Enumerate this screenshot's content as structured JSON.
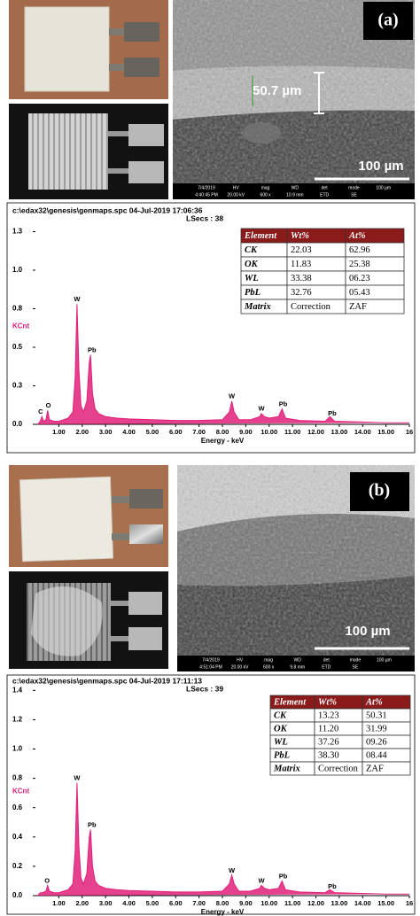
{
  "panels": [
    {
      "label": "(a)",
      "thickness": "50.7 µm",
      "scale_bar": "100 µm",
      "sem_info": [
        [
          "7/4/2019",
          "HV",
          "mag",
          "WD",
          "det",
          "mode",
          "100 µm"
        ],
        [
          "4:40:45 PM",
          "20.00 kV",
          "600 x",
          "10.9 mm",
          "ETD",
          "SE"
        ]
      ]
    },
    {
      "label": "(b)",
      "scale_bar": "100 µm",
      "sem_info": [
        [
          "7/4/2019",
          "HV",
          "mag",
          "WD",
          "det",
          "mode",
          "100 µm"
        ],
        [
          "4:51:04 PM",
          "20.00 kV",
          "600 x",
          "9.8 mm",
          "ETD",
          "SE"
        ]
      ]
    }
  ],
  "chart_data": [
    {
      "type": "line",
      "header": "c:\\edax32\\genesis\\genmaps.spc  04-Jul-2019 17:06:36",
      "lsecs": "LSecs :  38",
      "ylabel": "KCnt",
      "xlabel": "Energy - keV",
      "color": "#e0207a",
      "xlim": [
        0,
        16
      ],
      "ylim": [
        0,
        1.27
      ],
      "xticks": [
        {
          "value": 1,
          "label": "1.00"
        },
        {
          "value": 2,
          "label": "2.00"
        },
        {
          "value": 3,
          "label": "3.00"
        },
        {
          "value": 4,
          "label": "4.00"
        },
        {
          "value": 5,
          "label": "5.00"
        },
        {
          "value": 6,
          "label": "6.00"
        },
        {
          "value": 7,
          "label": "7.00"
        },
        {
          "value": 8,
          "label": "8.00"
        },
        {
          "value": 9,
          "label": "9.00"
        },
        {
          "value": 10,
          "label": "10.00"
        },
        {
          "value": 11,
          "label": "11.00"
        },
        {
          "value": 12,
          "label": "12.00"
        },
        {
          "value": 13,
          "label": "13.00"
        },
        {
          "value": 14,
          "label": "14.00"
        },
        {
          "value": 15,
          "label": "15.00"
        },
        16
      ],
      "yticks": [
        {
          "value": 0,
          "label": "0.0"
        },
        {
          "value": 0.25,
          "label": "0.3"
        },
        {
          "value": 0.5,
          "label": "0.5"
        },
        {
          "value": 0.75,
          "label": "0.8"
        },
        {
          "value": 1,
          "label": "1.0"
        },
        {
          "value": 1.25,
          "label": "1.3"
        }
      ],
      "x": [
        0.1,
        0.2,
        0.28,
        0.35,
        0.45,
        0.52,
        0.6,
        0.8,
        1.0,
        1.2,
        1.4,
        1.6,
        1.7,
        1.78,
        1.86,
        1.95,
        2.05,
        2.2,
        2.3,
        2.36,
        2.44,
        2.55,
        2.7,
        3.0,
        3.5,
        4.0,
        5.0,
        6.0,
        7.0,
        8.0,
        8.3,
        8.4,
        8.5,
        8.7,
        9.2,
        9.6,
        9.67,
        9.8,
        10.0,
        10.4,
        10.55,
        10.7,
        11.3,
        12.4,
        12.6,
        12.8,
        14.0,
        15.0,
        16.0
      ],
      "values": [
        0,
        0.02,
        0.05,
        0.02,
        0.03,
        0.09,
        0.03,
        0.02,
        0.02,
        0.03,
        0.04,
        0.08,
        0.3,
        0.78,
        0.35,
        0.12,
        0.08,
        0.15,
        0.4,
        0.45,
        0.2,
        0.1,
        0.07,
        0.05,
        0.04,
        0.035,
        0.03,
        0.025,
        0.025,
        0.03,
        0.08,
        0.15,
        0.08,
        0.03,
        0.03,
        0.05,
        0.07,
        0.05,
        0.04,
        0.05,
        0.1,
        0.04,
        0.025,
        0.02,
        0.05,
        0.02,
        0.015,
        0.01,
        0.01
      ],
      "annotations": [
        {
          "text": "C",
          "x": 0.22,
          "y": 0.08
        },
        {
          "text": "O",
          "x": 0.55,
          "y": 0.12
        },
        {
          "text": "W",
          "x": 1.78,
          "y": 0.81
        },
        {
          "text": "Pb",
          "x": 2.42,
          "y": 0.48
        },
        {
          "text": "W",
          "x": 8.4,
          "y": 0.18
        },
        {
          "text": "W",
          "x": 9.67,
          "y": 0.1
        },
        {
          "text": "Pb",
          "x": 10.6,
          "y": 0.13
        },
        {
          "text": "Pb",
          "x": 12.7,
          "y": 0.07
        }
      ],
      "table": {
        "header": [
          "Element",
          "Wt%",
          "At%"
        ],
        "rows": [
          [
            "CK",
            "22.03",
            "62.96"
          ],
          [
            "OK",
            "11.83",
            "25.38"
          ],
          [
            "WL",
            "33.38",
            "06.23"
          ],
          [
            "PbL",
            "32.76",
            "05.43"
          ],
          [
            "Matrix",
            "Correction",
            "ZAF"
          ]
        ]
      }
    },
    {
      "type": "line",
      "header": "c:\\edax32\\genesis\\genmaps.spc  04-Jul-2019 17:11:13",
      "lsecs": "LSecs :  39",
      "ylabel": "KCnt",
      "xlabel": "Energy - keV",
      "color": "#e0207a",
      "xlim": [
        0,
        16
      ],
      "ylim": [
        0,
        1.42
      ],
      "xticks": [
        {
          "value": 1,
          "label": "1.00"
        },
        {
          "value": 2,
          "label": "2.00"
        },
        {
          "value": 3,
          "label": "3.00"
        },
        {
          "value": 4,
          "label": "4.00"
        },
        {
          "value": 5,
          "label": "5.00"
        },
        {
          "value": 6,
          "label": "6.00"
        },
        {
          "value": 7,
          "label": "7.00"
        },
        {
          "value": 8,
          "label": "8.00"
        },
        {
          "value": 9,
          "label": "9.00"
        },
        {
          "value": 10,
          "label": "10.00"
        },
        {
          "value": 11,
          "label": "11.00"
        },
        {
          "value": 12,
          "label": "12.00"
        },
        {
          "value": 13,
          "label": "13.00"
        },
        {
          "value": 14,
          "label": "14.00"
        },
        {
          "value": 15,
          "label": "15.00"
        },
        16
      ],
      "yticks": [
        {
          "value": 0,
          "label": "0.0"
        },
        0.2,
        0.4,
        0.6,
        0.8,
        {
          "value": 1,
          "label": "1.0"
        },
        1.2,
        1.4
      ],
      "x": [
        0.1,
        0.2,
        0.3,
        0.45,
        0.52,
        0.6,
        0.8,
        1.0,
        1.2,
        1.4,
        1.6,
        1.7,
        1.78,
        1.86,
        1.95,
        2.05,
        2.2,
        2.3,
        2.36,
        2.44,
        2.55,
        2.7,
        3.0,
        3.5,
        4.0,
        5.0,
        6.0,
        7.0,
        8.0,
        8.3,
        8.4,
        8.5,
        8.7,
        9.2,
        9.6,
        9.67,
        9.8,
        10.0,
        10.4,
        10.55,
        10.7,
        11.3,
        12.4,
        12.6,
        12.8,
        14.0,
        15.0,
        16.0
      ],
      "values": [
        0,
        0.02,
        0.02,
        0.03,
        0.07,
        0.03,
        0.02,
        0.02,
        0.03,
        0.04,
        0.08,
        0.3,
        0.77,
        0.33,
        0.12,
        0.08,
        0.15,
        0.4,
        0.45,
        0.2,
        0.1,
        0.07,
        0.05,
        0.04,
        0.035,
        0.03,
        0.025,
        0.025,
        0.03,
        0.08,
        0.14,
        0.08,
        0.03,
        0.03,
        0.05,
        0.07,
        0.05,
        0.04,
        0.05,
        0.1,
        0.04,
        0.025,
        0.02,
        0.04,
        0.02,
        0.015,
        0.01,
        0.01
      ],
      "annotations": [
        {
          "text": "O",
          "x": 0.5,
          "y": 0.1
        },
        {
          "text": "W",
          "x": 1.78,
          "y": 0.8
        },
        {
          "text": "Pb",
          "x": 2.42,
          "y": 0.48
        },
        {
          "text": "W",
          "x": 8.4,
          "y": 0.17
        },
        {
          "text": "W",
          "x": 9.67,
          "y": 0.1
        },
        {
          "text": "Pb",
          "x": 10.6,
          "y": 0.13
        },
        {
          "text": "Pb",
          "x": 12.7,
          "y": 0.06
        }
      ],
      "table": {
        "header": [
          "Element",
          "Wt%",
          "At%"
        ],
        "rows": [
          [
            "CK",
            "13.23",
            "50.31"
          ],
          [
            "OK",
            "11.20",
            "31.99"
          ],
          [
            "WL",
            "37.26",
            "09.26"
          ],
          [
            "PbL",
            "38.30",
            "08.44"
          ],
          [
            "Matrix",
            "Correction",
            "ZAF"
          ]
        ]
      }
    }
  ]
}
